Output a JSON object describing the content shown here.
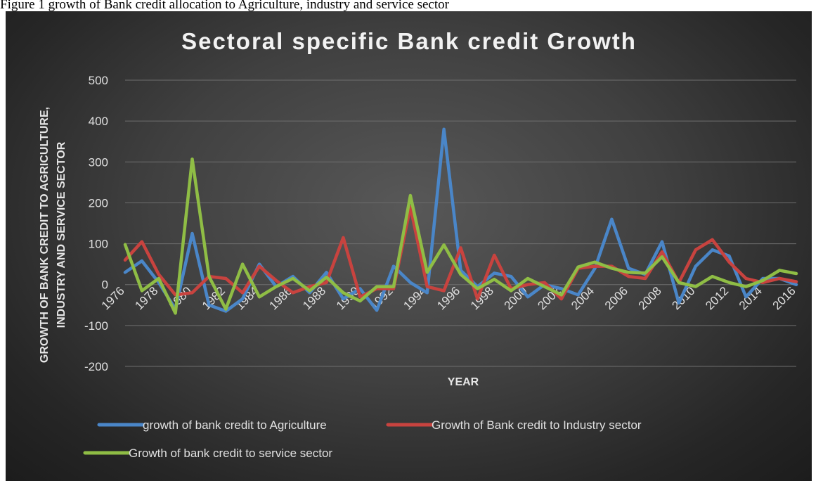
{
  "caption": "Figure 1 growth of Bank credit allocation to Agriculture, industry and service sector",
  "chart_data": {
    "type": "line",
    "title": "Sectoral specific Bank credit Growth",
    "xlabel": "YEAR",
    "ylabel_line1": "GROWTH OF BANK CREDIT TO AGRICULTURE,",
    "ylabel_line2": "INDUSTRY AND  SERVICE SECTOR",
    "ylim": [
      -200,
      500
    ],
    "y_ticks": [
      500,
      400,
      300,
      200,
      100,
      0,
      -100,
      -200
    ],
    "x": [
      1976,
      1977,
      1978,
      1979,
      1980,
      1981,
      1982,
      1983,
      1984,
      1985,
      1986,
      1987,
      1988,
      1989,
      1990,
      1991,
      1992,
      1993,
      1994,
      1995,
      1996,
      1997,
      1998,
      1999,
      2000,
      2001,
      2002,
      2003,
      2004,
      2005,
      2006,
      2007,
      2008,
      2009,
      2010,
      2011,
      2012,
      2013,
      2014,
      2015,
      2016
    ],
    "x_tick_labels": [
      "1976",
      "1978",
      "1980",
      "1982",
      "1984",
      "1986",
      "1988",
      "1990",
      "1992",
      "1994",
      "1996",
      "1998",
      "2000",
      "2002",
      "2004",
      "2006",
      "2008",
      "2010",
      "2012",
      "2014",
      "2016"
    ],
    "grid": true,
    "legend_position": "bottom",
    "series": [
      {
        "name": "growth  of bank credit to Agriculture",
        "color": "#4a86c8",
        "values": [
          30,
          58,
          5,
          -60,
          125,
          -50,
          -65,
          -35,
          50,
          -5,
          20,
          -20,
          30,
          -35,
          -10,
          -63,
          45,
          5,
          -20,
          380,
          35,
          -5,
          28,
          20,
          -30,
          0,
          -10,
          -25,
          40,
          160,
          40,
          25,
          105,
          -45,
          45,
          85,
          70,
          -30,
          15,
          15,
          0
        ]
      },
      {
        "name": "Growth of Bank credit to Industry sector",
        "color": "#c8433f",
        "values": [
          60,
          105,
          25,
          -25,
          -20,
          20,
          15,
          -20,
          45,
          10,
          -20,
          -5,
          5,
          115,
          -30,
          -10,
          -10,
          190,
          -5,
          -15,
          90,
          -35,
          72,
          -10,
          0,
          5,
          -35,
          40,
          45,
          45,
          20,
          15,
          80,
          5,
          85,
          110,
          55,
          15,
          5,
          15,
          7
        ]
      },
      {
        "name": "Growth of bank credit to service sector",
        "color": "#8fbd45",
        "values": [
          98,
          -15,
          15,
          -70,
          307,
          20,
          -60,
          50,
          -30,
          -5,
          15,
          -15,
          18,
          -20,
          -40,
          -5,
          -5,
          218,
          30,
          97,
          25,
          -10,
          13,
          -15,
          15,
          -5,
          -25,
          43,
          55,
          40,
          30,
          28,
          68,
          5,
          -5,
          20,
          5,
          -5,
          10,
          35,
          27
        ]
      }
    ]
  }
}
